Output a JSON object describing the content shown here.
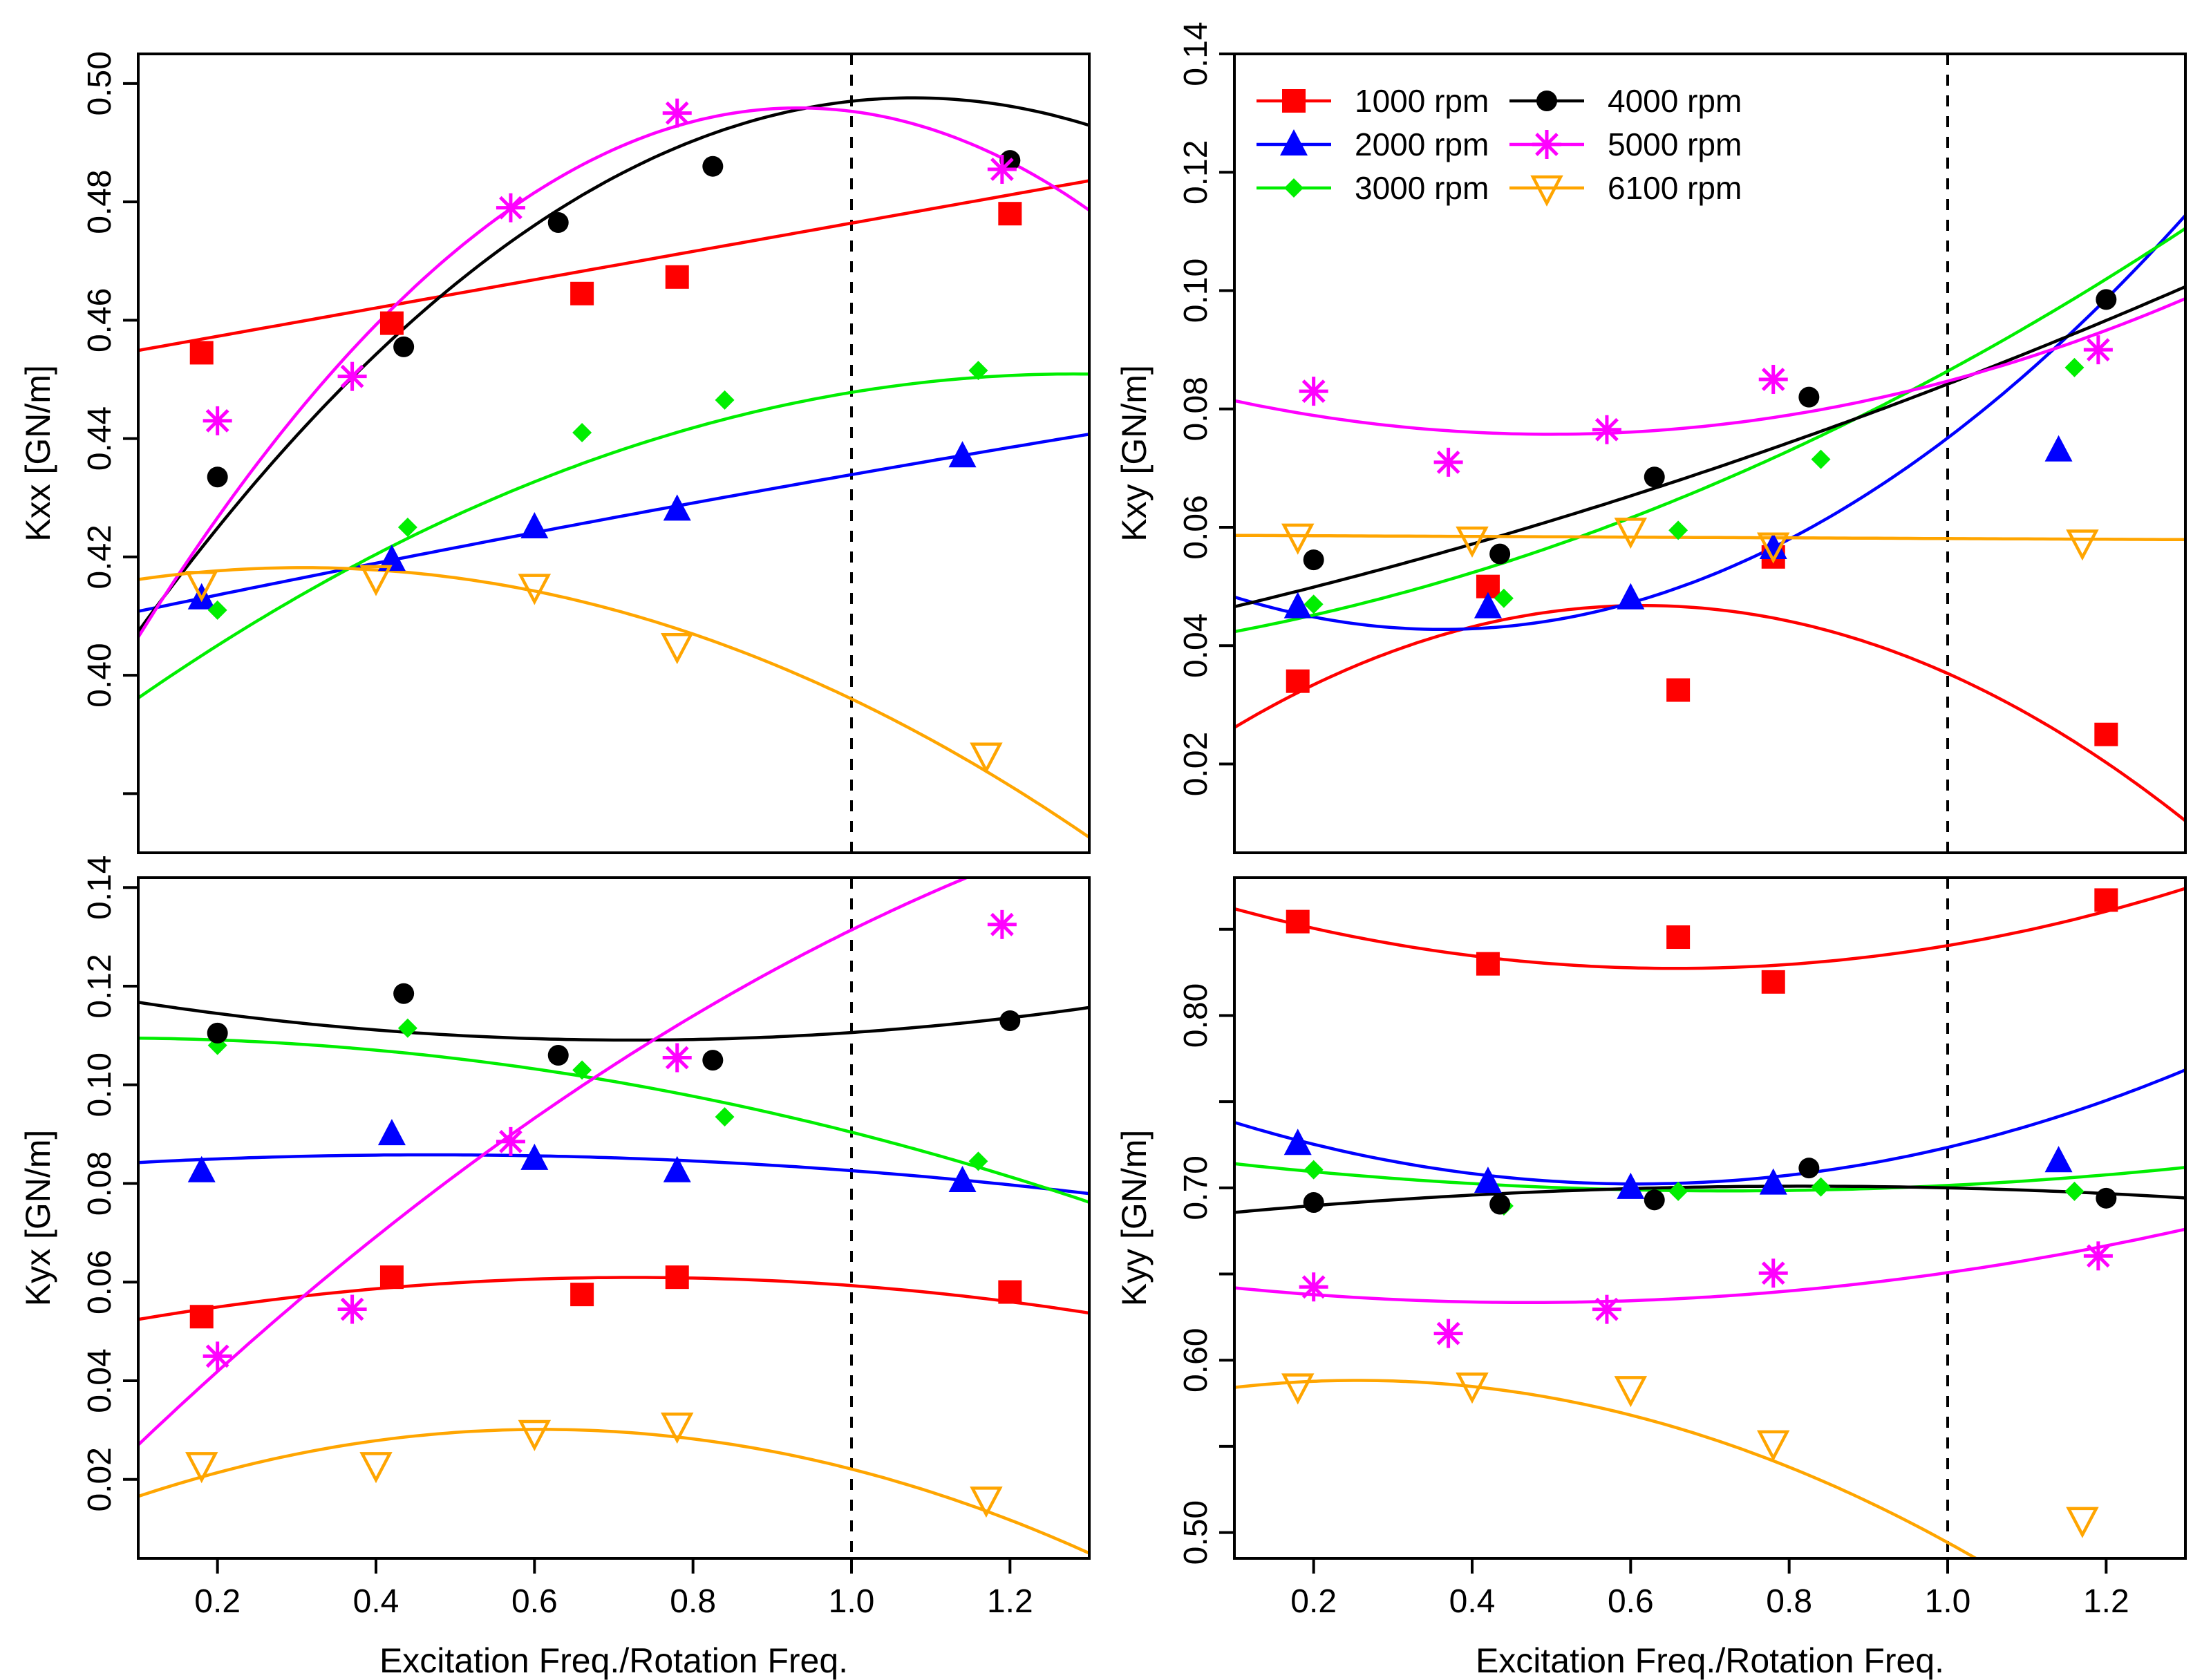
{
  "figure": {
    "series_styles": [
      {
        "name": "1000 rpm",
        "color": "#ff0000",
        "marker": "square"
      },
      {
        "name": "2000 rpm",
        "color": "#0000ff",
        "marker": "triangle-up"
      },
      {
        "name": "3000 rpm",
        "color": "#00ee00",
        "marker": "diamond"
      },
      {
        "name": "4000 rpm",
        "color": "#000000",
        "marker": "circle"
      },
      {
        "name": "5000 rpm",
        "color": "#ff00ff",
        "marker": "asterisk"
      },
      {
        "name": "6100 rpm",
        "color": "#ffa500",
        "marker": "triangle-down-open"
      }
    ],
    "reference_line_x": 1.0,
    "x_tick_labels": [
      "0.2",
      "0.4",
      "0.6",
      "0.8",
      "1.0",
      "1.2"
    ],
    "xlabel": "Excitation Freq./Rotation Freq."
  },
  "chart_data": [
    {
      "id": "kxx",
      "type": "scatter",
      "ylabel": "Kxx [GN/m]",
      "xlim": [
        0.1,
        1.3
      ],
      "ylim": [
        0.37,
        0.505
      ],
      "y_ticks": [
        0.38,
        0.4,
        0.42,
        0.44,
        0.46,
        0.48,
        0.5
      ],
      "y_tick_labels": [
        "",
        "0.40",
        "0.42",
        "0.44",
        "0.46",
        "0.48",
        "0.50"
      ],
      "show_legend": false,
      "series": [
        {
          "name": "1000 rpm",
          "x": [
            0.18,
            0.42,
            0.66,
            0.78,
            1.2
          ],
          "y": [
            0.4545,
            0.4595,
            0.4645,
            0.4673,
            0.478
          ],
          "fit": [
            0.4525,
            0.0239,
            0
          ]
        },
        {
          "name": "2000 rpm",
          "x": [
            0.18,
            0.42,
            0.6,
            0.78,
            1.14
          ],
          "y": [
            0.413,
            0.4195,
            0.425,
            0.428,
            0.437
          ],
          "fit": [
            0.408,
            0.0283,
            -0.0024
          ]
        },
        {
          "name": "3000 rpm",
          "x": [
            0.2,
            0.44,
            0.66,
            0.84,
            1.16
          ],
          "y": [
            0.411,
            0.425,
            0.441,
            0.4465,
            0.4515
          ],
          "fit": [
            0.3865,
            0.1005,
            -0.0392
          ]
        },
        {
          "name": "4000 rpm",
          "x": [
            0.2,
            0.435,
            0.63,
            0.825,
            1.2
          ],
          "y": [
            0.4335,
            0.4555,
            0.4765,
            0.486,
            0.487
          ],
          "fit": [
            0.388,
            0.2033,
            -0.0943
          ]
        },
        {
          "name": "5000 rpm",
          "x": [
            0.2,
            0.37,
            0.57,
            0.78,
            1.19
          ],
          "y": [
            0.443,
            0.4505,
            0.479,
            0.495,
            0.4855
          ],
          "fit": [
            0.3837,
            0.2403,
            -0.1287
          ]
        },
        {
          "name": "6100 rpm",
          "x": [
            0.18,
            0.4,
            0.6,
            0.78,
            1.17
          ],
          "y": [
            0.4155,
            0.4165,
            0.415,
            0.405,
            0.3865
          ],
          "fit": [
            0.4138,
            0.0285,
            -0.0463
          ]
        }
      ]
    },
    {
      "id": "kxy",
      "type": "scatter",
      "ylabel": "Kxy [GN/m]",
      "xlim": [
        0.1,
        1.3
      ],
      "ylim": [
        0.005,
        0.14
      ],
      "y_ticks": [
        0.02,
        0.04,
        0.06,
        0.08,
        0.1,
        0.12,
        0.14
      ],
      "y_tick_labels": [
        "0.02",
        "0.04",
        "0.06",
        "0.08",
        "0.10",
        "0.12",
        "0.14"
      ],
      "show_legend": true,
      "series": [
        {
          "name": "1000 rpm",
          "x": [
            0.18,
            0.42,
            0.66,
            0.78,
            1.2
          ],
          "y": [
            0.034,
            0.05,
            0.0325,
            0.055,
            0.025
          ],
          "fit": [
            0.0174,
            0.0955,
            -0.0776
          ]
        },
        {
          "name": "2000 rpm",
          "x": [
            0.18,
            0.42,
            0.6,
            0.78,
            1.14
          ],
          "y": [
            0.0465,
            0.0465,
            0.048,
            0.0565,
            0.073
          ],
          "fit": [
            0.0532,
            -0.0577,
            0.0796
          ]
        },
        {
          "name": "3000 rpm",
          "x": [
            0.2,
            0.44,
            0.66,
            0.84,
            1.16
          ],
          "y": [
            0.047,
            0.048,
            0.0595,
            0.0715,
            0.087
          ],
          "fit": [
            0.0401,
            0.0201,
            0.0262
          ]
        },
        {
          "name": "4000 rpm",
          "x": [
            0.2,
            0.435,
            0.63,
            0.825,
            1.2
          ],
          "y": [
            0.0545,
            0.0555,
            0.0685,
            0.082,
            0.0985
          ],
          "fit": [
            0.0435,
            0.0298,
            0.0109
          ]
        },
        {
          "name": "5000 rpm",
          "x": [
            0.2,
            0.37,
            0.57,
            0.78,
            1.19
          ],
          "y": [
            0.083,
            0.071,
            0.0765,
            0.085,
            0.09
          ],
          "fit": [
            0.0846,
            -0.0356,
            0.0357
          ]
        },
        {
          "name": "6100 rpm",
          "x": [
            0.18,
            0.4,
            0.6,
            0.78,
            1.17
          ],
          "y": [
            0.0585,
            0.058,
            0.0595,
            0.057,
            0.0575
          ],
          "fit": [
            0.0587,
            -0.0006,
            0
          ]
        }
      ]
    },
    {
      "id": "kyx",
      "type": "scatter",
      "ylabel": "Kyx [GN/m]",
      "xlim": [
        0.1,
        1.3
      ],
      "ylim": [
        0.004,
        0.142
      ],
      "y_ticks": [
        0.02,
        0.04,
        0.06,
        0.08,
        0.1,
        0.12,
        0.14
      ],
      "y_tick_labels": [
        "0.02",
        "0.04",
        "0.06",
        "0.08",
        "0.10",
        "0.12",
        "0.14"
      ],
      "show_legend": false,
      "series": [
        {
          "name": "1000 rpm",
          "x": [
            0.18,
            0.42,
            0.66,
            0.78,
            1.2
          ],
          "y": [
            0.053,
            0.061,
            0.0575,
            0.061,
            0.058
          ],
          "fit": [
            0.0495,
            0.0316,
            -0.0218
          ]
        },
        {
          "name": "2000 rpm",
          "x": [
            0.18,
            0.42,
            0.6,
            0.78,
            1.14
          ],
          "y": [
            0.0825,
            0.09,
            0.085,
            0.0825,
            0.0805
          ],
          "fit": [
            0.0833,
            0.0107,
            -0.0114
          ]
        },
        {
          "name": "3000 rpm",
          "x": [
            0.2,
            0.44,
            0.66,
            0.84,
            1.16
          ],
          "y": [
            0.108,
            0.1115,
            0.103,
            0.0935,
            0.0845
          ],
          "fit": [
            0.1094,
            0.0028,
            -0.0218
          ]
        },
        {
          "name": "4000 rpm",
          "x": [
            0.2,
            0.435,
            0.63,
            0.825,
            1.2
          ],
          "y": [
            0.1105,
            0.1185,
            0.106,
            0.105,
            0.113
          ],
          "fit": [
            0.1194,
            -0.0286,
            0.0198
          ]
        },
        {
          "name": "5000 rpm",
          "x": [
            0.2,
            0.37,
            0.57,
            0.78,
            1.19
          ],
          "y": [
            0.045,
            0.0545,
            0.0885,
            0.1055,
            0.1325
          ],
          "fit": [
            0.0113,
            0.1612,
            -0.0411
          ]
        },
        {
          "name": "6100 rpm",
          "x": [
            0.18,
            0.4,
            0.6,
            0.78,
            1.17
          ],
          "y": [
            0.023,
            0.023,
            0.0295,
            0.031,
            0.016
          ],
          "fit": [
            0.0107,
            0.0639,
            -0.0525
          ]
        }
      ]
    },
    {
      "id": "kyy",
      "type": "scatter",
      "ylabel": "Kyy [GN/m]",
      "xlim": [
        0.1,
        1.3
      ],
      "ylim": [
        0.485,
        0.88
      ],
      "y_ticks": [
        0.5,
        0.55,
        0.6,
        0.65,
        0.7,
        0.75,
        0.8,
        0.85
      ],
      "y_tick_labels": [
        "0.50",
        "",
        "0.60",
        "",
        "0.70",
        "",
        "0.80",
        ""
      ],
      "show_legend": false,
      "series": [
        {
          "name": "1000 rpm",
          "x": [
            0.18,
            0.42,
            0.66,
            0.78,
            1.2
          ],
          "y": [
            0.8545,
            0.83,
            0.8455,
            0.8195,
            0.867
          ],
          "fit": [
            0.8755,
            -0.1468,
            0.1119
          ]
        },
        {
          "name": "2000 rpm",
          "x": [
            0.18,
            0.42,
            0.6,
            0.78,
            1.14
          ],
          "y": [
            0.7255,
            0.7035,
            0.7,
            0.7025,
            0.7155
          ],
          "fit": [
            0.7534,
            -0.1681,
            0.1382
          ]
        },
        {
          "name": "3000 rpm",
          "x": [
            0.2,
            0.44,
            0.66,
            0.84,
            1.16
          ],
          "y": [
            0.7105,
            0.6895,
            0.698,
            0.7005,
            0.698
          ],
          "fit": [
            0.7195,
            -0.0588,
            0.0407
          ]
        },
        {
          "name": "4000 rpm",
          "x": [
            0.2,
            0.435,
            0.63,
            0.825,
            1.2
          ],
          "y": [
            0.6915,
            0.6905,
            0.693,
            0.7115,
            0.694
          ],
          "fit": [
            0.6812,
            0.0483,
            -0.0295
          ]
        },
        {
          "name": "5000 rpm",
          "x": [
            0.2,
            0.37,
            0.57,
            0.78,
            1.19
          ],
          "y": [
            0.6425,
            0.6155,
            0.6295,
            0.6505,
            0.6605
          ],
          "fit": [
            0.6472,
            -0.0583,
            0.0619
          ]
        },
        {
          "name": "6100 rpm",
          "x": [
            0.18,
            0.4,
            0.6,
            0.78,
            1.17
          ],
          "y": [
            0.585,
            0.5855,
            0.5835,
            0.552,
            0.5075
          ],
          "fit": [
            0.5772,
            0.0867,
            -0.1697
          ]
        }
      ]
    }
  ]
}
